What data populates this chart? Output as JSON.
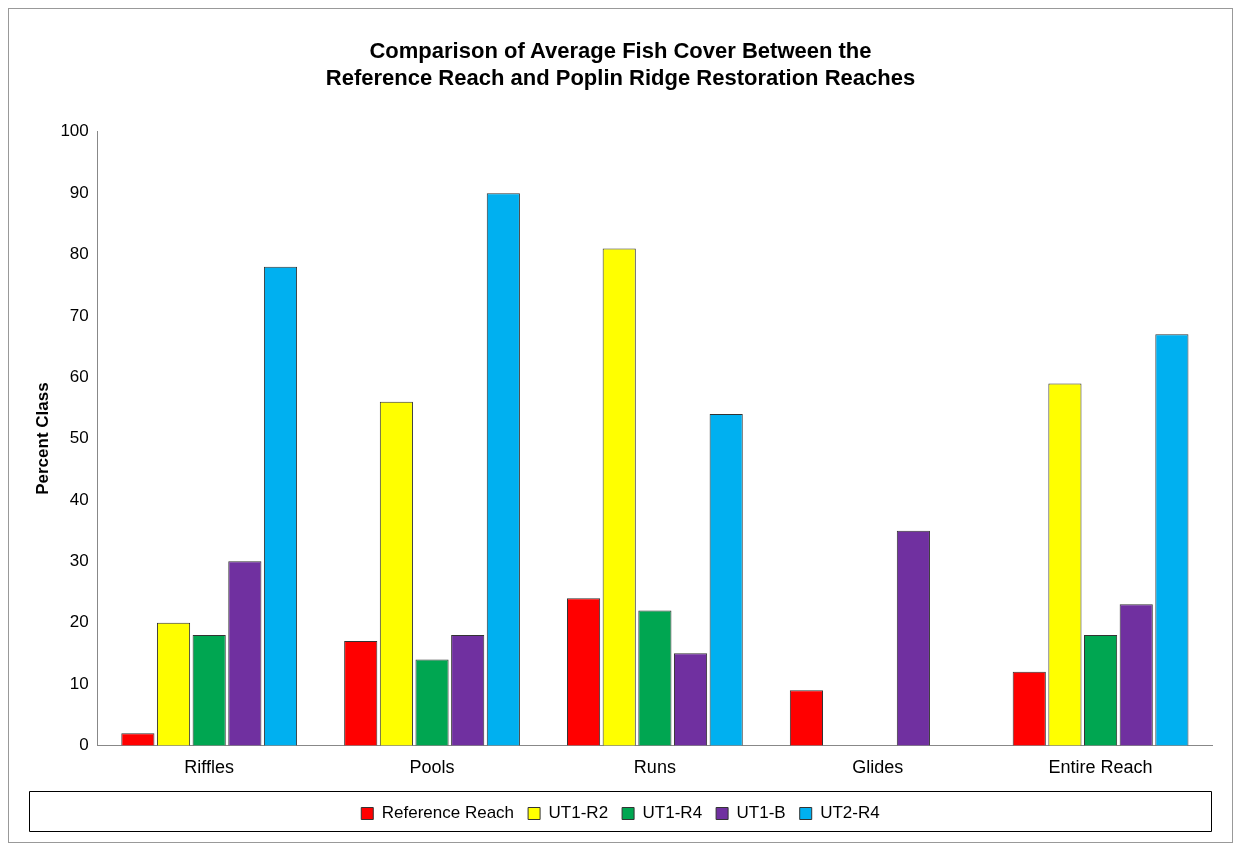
{
  "chart_data": {
    "type": "bar",
    "title": "Comparison of Average Fish Cover Between the Reference Reach and Poplin Ridge Restoration Reaches",
    "ylabel": "Percent Class",
    "categories": [
      "Riffles",
      "Pools",
      "Runs",
      "Glides",
      "Entire Reach"
    ],
    "series": [
      {
        "name": "Reference Reach",
        "color": "#ff0000",
        "values": [
          2,
          17,
          24,
          9,
          12
        ]
      },
      {
        "name": "UT1-R2",
        "color": "#ffff00",
        "values": [
          20,
          56,
          81,
          null,
          59
        ]
      },
      {
        "name": "UT1-R4",
        "color": "#00a651",
        "values": [
          18,
          14,
          22,
          null,
          18
        ]
      },
      {
        "name": "UT1-B",
        "color": "#7030a0",
        "values": [
          30,
          18,
          15,
          35,
          23
        ]
      },
      {
        "name": "UT2-R4",
        "color": "#00b0f0",
        "values": [
          78,
          90,
          54,
          null,
          67
        ]
      }
    ],
    "ylim": [
      0,
      100
    ],
    "yticks": [
      0,
      10,
      20,
      30,
      40,
      50,
      60,
      70,
      80,
      90,
      100
    ],
    "grid": false,
    "legend": "bottom"
  }
}
